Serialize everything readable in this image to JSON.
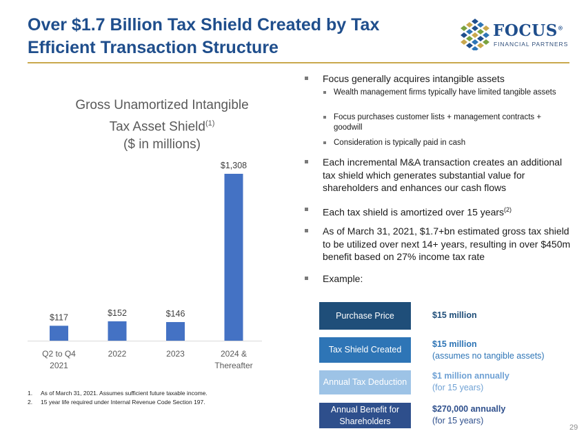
{
  "title": {
    "line1": "Over $1.7 Billion Tax Shield Created by Tax",
    "line2": "Efficient Transaction Structure"
  },
  "logo": {
    "word": "FOCUS",
    "reg": "®",
    "sub": "FINANCIAL PARTNERS"
  },
  "chart_title": {
    "line1": "Gross Unamortized Intangible",
    "line2": "Tax Asset Shield",
    "sup": "(1)",
    "line3": "($ in millions)"
  },
  "chart_data": {
    "type": "bar",
    "title": "Gross Unamortized Intangible Tax Asset Shield(1) ($ in millions)",
    "categories": [
      [
        "Q2 to Q4",
        "2021"
      ],
      [
        "2022"
      ],
      [
        "2023"
      ],
      [
        "2024 &",
        "Thereafter"
      ]
    ],
    "values": [
      117,
      152,
      146,
      1308
    ],
    "data_labels": [
      "$117",
      "$152",
      "$146",
      "$1,308"
    ],
    "xlabel": "",
    "ylabel": "",
    "ylim": [
      0,
      1308
    ],
    "color": "#4472c4",
    "grid": false
  },
  "bullets": [
    {
      "text": "Focus generally acquires intangible assets",
      "sub": [
        "Wealth management firms typically have limited tangible assets",
        "Focus purchases customer lists + management contracts + goodwill",
        "Consideration is typically paid in cash"
      ]
    },
    {
      "text": "Each incremental M&A transaction creates an additional tax shield which generates substantial value for shareholders and enhances our cash flows"
    },
    {
      "text": "Each tax shield is amortized over 15 years",
      "sup": "(2)"
    },
    {
      "text": "As of March 31, 2021, $1.7+bn estimated gross tax shield to be utilized over next 14+ years, resulting in over $450m benefit based on 27% income tax rate"
    },
    {
      "text": "Example:"
    }
  ],
  "example": [
    {
      "label": "Purchase Price",
      "value": "$15 million",
      "sub": "",
      "box_color": "#1f4e79",
      "text_color": "#1f4e79"
    },
    {
      "label": "Tax Shield Created",
      "value": "$15 million",
      "sub": "(assumes no tangible assets)",
      "box_color": "#2e75b6",
      "text_color": "#2e75b6"
    },
    {
      "label": "Annual Tax Deduction",
      "value": "$1 million annually",
      "sub": "(for 15 years)",
      "box_color": "#9dc3e6",
      "text_color": "#6fa1d4"
    },
    {
      "label": "Annual Benefit for Shareholders",
      "value": "$270,000 annually",
      "sub": "(for 15 years)",
      "box_color": "#2e4f8c",
      "text_color": "#2e4f8c"
    }
  ],
  "footnotes": [
    {
      "num": "1.",
      "text": "As of March 31, 2021.  Assumes sufficient future taxable income."
    },
    {
      "num": "2.",
      "text": "15 year life required under Internal Revenue Code Section 197."
    }
  ],
  "page_number": "29"
}
